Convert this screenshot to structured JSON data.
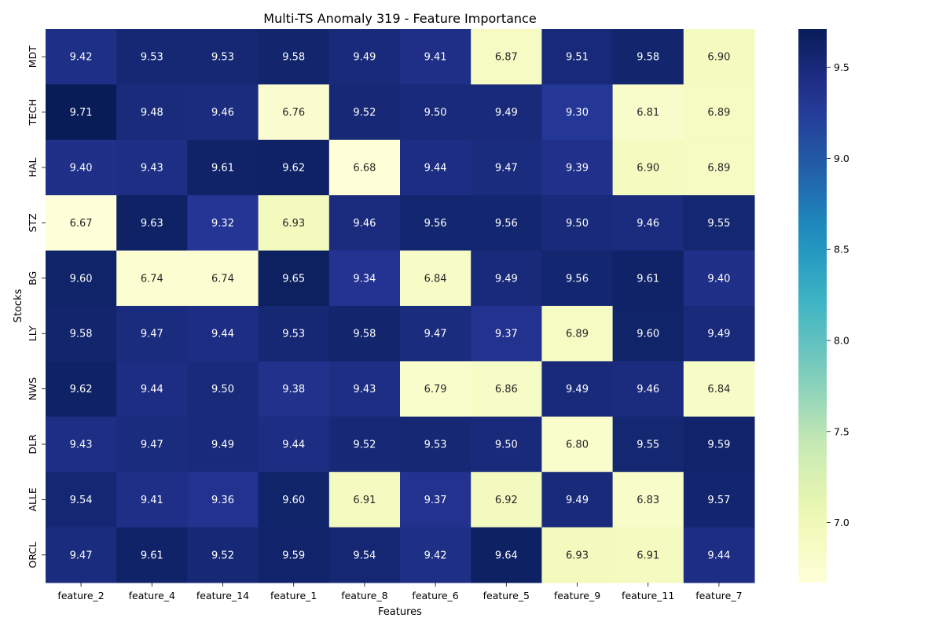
{
  "chart_data": {
    "type": "heatmap",
    "title": "Multi-TS Anomaly 319 - Feature Importance",
    "xlabel": "Features",
    "ylabel": "Stocks",
    "x_categories": [
      "feature_2",
      "feature_4",
      "feature_14",
      "feature_1",
      "feature_8",
      "feature_6",
      "feature_5",
      "feature_9",
      "feature_11",
      "feature_7"
    ],
    "y_categories": [
      "MDT",
      "TECH",
      "HAL",
      "STZ",
      "BG",
      "LLY",
      "NWS",
      "DLR",
      "ALLE",
      "ORCL"
    ],
    "values": [
      [
        9.42,
        9.53,
        9.53,
        9.58,
        9.49,
        9.41,
        6.87,
        9.51,
        9.58,
        6.9
      ],
      [
        9.71,
        9.48,
        9.46,
        6.76,
        9.52,
        9.5,
        9.49,
        9.3,
        6.81,
        6.89
      ],
      [
        9.4,
        9.43,
        9.61,
        9.62,
        6.68,
        9.44,
        9.47,
        9.39,
        6.9,
        6.89
      ],
      [
        6.67,
        9.63,
        9.32,
        6.93,
        9.46,
        9.56,
        9.56,
        9.5,
        9.46,
        9.55
      ],
      [
        9.6,
        6.74,
        6.74,
        9.65,
        9.34,
        6.84,
        9.49,
        9.56,
        9.61,
        9.4
      ],
      [
        9.58,
        9.47,
        9.44,
        9.53,
        9.58,
        9.47,
        9.37,
        6.89,
        9.6,
        9.49
      ],
      [
        9.62,
        9.44,
        9.5,
        9.38,
        9.43,
        6.79,
        6.86,
        9.49,
        9.46,
        6.84
      ],
      [
        9.43,
        9.47,
        9.49,
        9.44,
        9.52,
        9.53,
        9.5,
        6.8,
        9.55,
        9.59
      ],
      [
        9.54,
        9.41,
        9.36,
        9.6,
        6.91,
        9.37,
        6.92,
        9.49,
        6.83,
        9.57
      ],
      [
        9.47,
        9.61,
        9.52,
        9.59,
        9.54,
        9.42,
        9.64,
        6.93,
        6.91,
        9.44
      ]
    ],
    "value_format": "2 decimals",
    "colormap": "YlGnBu",
    "color_range": [
      6.67,
      9.71
    ],
    "colorbar_ticks": [
      "7.0",
      "7.5",
      "8.0",
      "8.5",
      "9.0",
      "9.5"
    ],
    "grid": false
  }
}
